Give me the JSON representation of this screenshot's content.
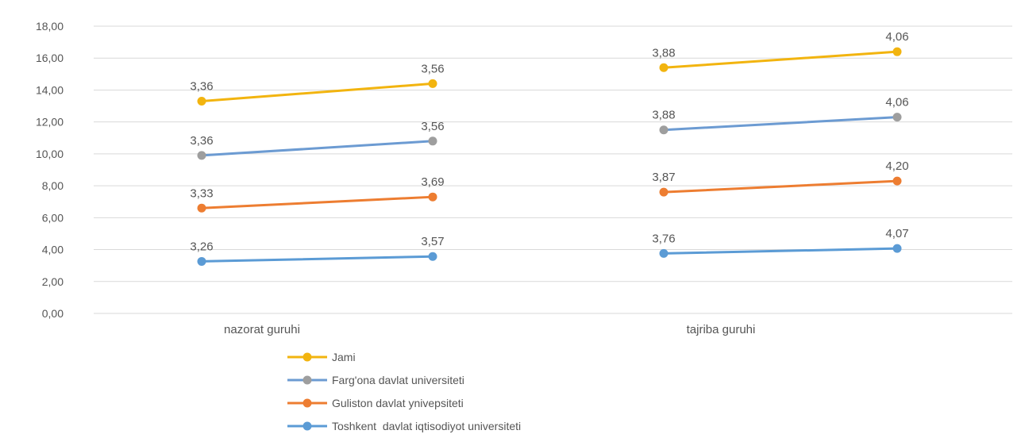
{
  "chart_data": {
    "type": "line",
    "title": "",
    "xlabel": "",
    "ylabel": "",
    "ylim": [
      0,
      18
    ],
    "yticks": [
      "0,00",
      "2,00",
      "4,00",
      "6,00",
      "8,00",
      "10,00",
      "12,00",
      "14,00",
      "16,00",
      "18,00"
    ],
    "grid": true,
    "legend_position": "bottom",
    "groups": [
      {
        "label": "nazorat guruhi",
        "points": 2
      },
      {
        "label": "tajriba guruhi",
        "points": 2
      }
    ],
    "series": [
      {
        "name": "Jami",
        "color": "#F2B40F",
        "marker_color": "#F2B40F",
        "values": [
          13.3,
          14.4,
          15.4,
          16.4
        ],
        "labels": [
          "3,36",
          "3,56",
          "3,88",
          "4,06"
        ]
      },
      {
        "name": "Farg'ona davlat universiteti",
        "color": "#6C9BD2",
        "marker_color": "#9E9E9E",
        "values": [
          9.9,
          10.8,
          11.5,
          12.3
        ],
        "labels": [
          "3,36",
          "3,56",
          "3,88",
          "4,06"
        ]
      },
      {
        "name": "Guliston davlat ynivepsiteti",
        "color": "#ED7D31",
        "marker_color": "#ED7D31",
        "values": [
          6.6,
          7.3,
          7.6,
          8.3
        ],
        "labels": [
          "3,33",
          "3,69",
          "3,87",
          "4,20"
        ]
      },
      {
        "name": "Toshkent  davlat iqtisodiyot universiteti",
        "color": "#5B9BD5",
        "marker_color": "#5B9BD5",
        "values": [
          3.26,
          3.57,
          3.76,
          4.07
        ],
        "labels": [
          "3,26",
          "3,57",
          "3,76",
          "4,07"
        ]
      }
    ]
  }
}
